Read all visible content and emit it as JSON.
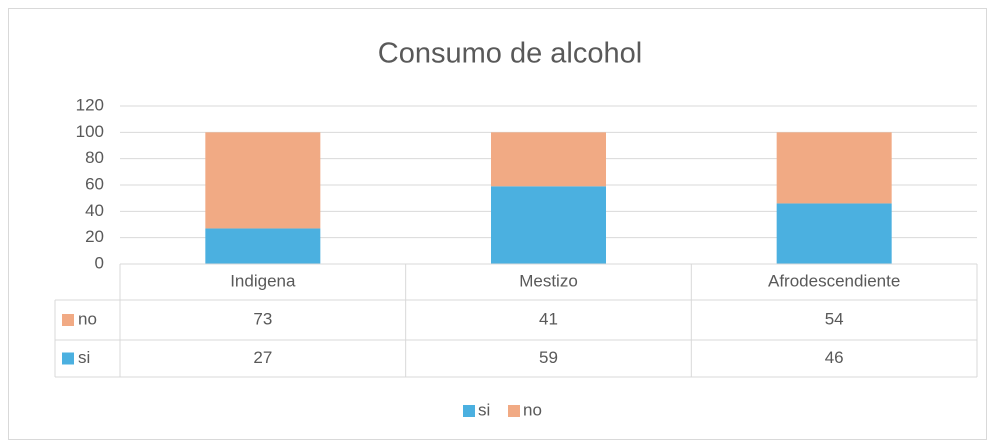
{
  "chart_data": {
    "type": "bar",
    "stacked": true,
    "title": "Consumo de alcohol",
    "categories": [
      "Indigena",
      "Mestizo",
      "Afrodescendiente"
    ],
    "series": [
      {
        "name": "si",
        "color": "#4bb0e0",
        "values": [
          27,
          59,
          46
        ]
      },
      {
        "name": "no",
        "color": "#f1aa84",
        "values": [
          73,
          41,
          54
        ]
      }
    ],
    "ylim": [
      0,
      120
    ],
    "yticks": [
      0,
      20,
      40,
      60,
      80,
      100,
      120
    ],
    "grid": true,
    "legend": "bottom",
    "data_table": true
  }
}
